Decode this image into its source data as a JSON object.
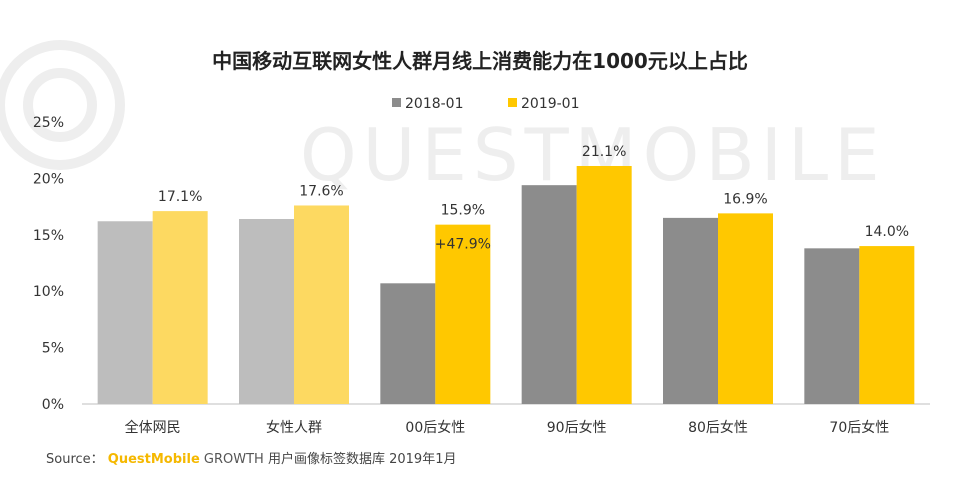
{
  "watermark": "QUESTMOBILE",
  "chart_data": {
    "type": "bar",
    "title": "中国移动互联网女性人群月线上消费能力在1000元以上占比",
    "categories": [
      "全体网民",
      "女性人群",
      "00后女性",
      "90后女性",
      "80后女性",
      "70后女性"
    ],
    "series": [
      {
        "name": "2018-01",
        "values": [
          16.2,
          16.4,
          10.7,
          19.4,
          16.5,
          13.8
        ],
        "colors": [
          "#BDBDBD",
          "#BDBDBD",
          "#8C8C8C",
          "#8C8C8C",
          "#8C8C8C",
          "#8C8C8C"
        ]
      },
      {
        "name": "2019-01",
        "values": [
          17.1,
          17.6,
          15.9,
          21.1,
          16.9,
          14.0
        ],
        "colors": [
          "#FDD961",
          "#FDD961",
          "#FFC800",
          "#FFC800",
          "#FFC800",
          "#FFC800"
        ]
      }
    ],
    "value_labels": [
      "17.1%",
      "17.6%",
      "15.9%",
      "21.1%",
      "16.9%",
      "14.0%"
    ],
    "annotation": {
      "category_index": 2,
      "text": "+47.9%"
    },
    "yticks": [
      "0%",
      "5%",
      "10%",
      "15%",
      "20%",
      "25%"
    ],
    "ylim": [
      0,
      25
    ],
    "legend": {
      "position": "top",
      "items": [
        "2018-01",
        "2019-01"
      ],
      "colors": [
        "#8C8C8C",
        "#FFC800"
      ]
    }
  },
  "source": {
    "prefix": "Source：",
    "brand": "QuestMobile",
    "growth": "GROWTH",
    "rest": "用户画像标签数据库 2019年1月"
  }
}
